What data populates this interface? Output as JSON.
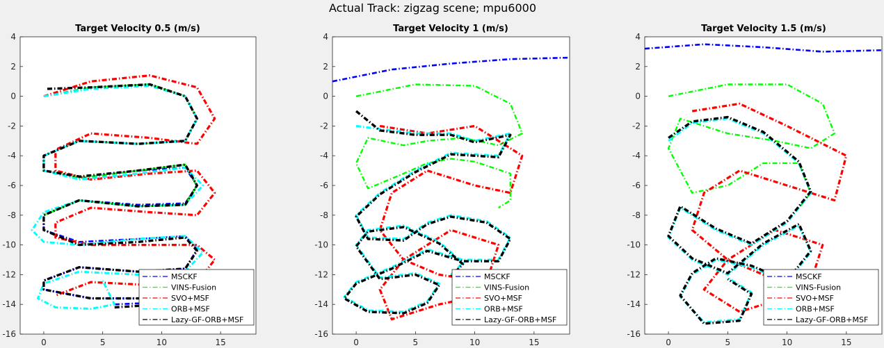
{
  "suptitle": "Actual Track: zigzag scene; mpu6000",
  "colors": {
    "figure_bg": "#f0f0f0",
    "axes_bg": "#ffffff",
    "MSCKF": "#0000ff",
    "VINS-Fusion": "#00ff00",
    "SVO+MSF": "#ff0000",
    "ORB+MSF": "#00ffff",
    "Lazy-GF-ORB+MSF": "#000000",
    "ground_truth_1": "#ff9900",
    "ground_truth_2": "#ffff00",
    "ground_truth_3": "#aa33ee"
  },
  "chart_data": [
    {
      "type": "line",
      "title": "Target Velocity 0.5 (m/s)",
      "xlim": [
        -2,
        18
      ],
      "ylim": [
        -16,
        4
      ],
      "xticks": [
        "0",
        "5",
        "10",
        "15"
      ],
      "yticks": [
        "4",
        "2",
        "0",
        "-2",
        "-4",
        "-6",
        "-8",
        "-10",
        "-12",
        "-14",
        "-16"
      ],
      "legend_loc": "bottom-right",
      "legend": [
        "MSCKF",
        "VINS-Fusion",
        "SVO+MSF",
        "ORB+MSF",
        "Lazy-GF-ORB+MSF"
      ],
      "series": [
        {
          "name": "MSCKF",
          "x": [
            0,
            4,
            9,
            12,
            13,
            12,
            8,
            3,
            0,
            0,
            3,
            8,
            12,
            13,
            12,
            8,
            3,
            0,
            0,
            3,
            8,
            12,
            13,
            12,
            8,
            3,
            0,
            0,
            4,
            9,
            12,
            13,
            12,
            6
          ],
          "y": [
            0,
            0.6,
            0.8,
            0,
            -1.5,
            -3,
            -3.2,
            -3.0,
            -4,
            -5,
            -5.5,
            -5,
            -4.8,
            -6,
            -7.2,
            -7.3,
            -7,
            -8,
            -9,
            -9.8,
            -9.6,
            -9.4,
            -10.3,
            -11.6,
            -11.8,
            -11.5,
            -12.4,
            -13,
            -13.6,
            -13.6,
            -13.2,
            -13.6,
            -13.8,
            -14
          ]
        },
        {
          "name": "VINS-Fusion",
          "x": [
            0,
            4,
            9,
            12,
            13,
            12,
            8,
            3,
            0,
            0,
            3,
            8,
            12,
            13,
            12,
            8,
            3,
            0
          ],
          "y": [
            0,
            0.6,
            0.8,
            0,
            -1.5,
            -3,
            -3.2,
            -3.0,
            -4,
            -5,
            -5.5,
            -5,
            -4.6,
            -6,
            -7.3,
            -7.4,
            -7,
            -8
          ]
        },
        {
          "name": "SVO+MSF",
          "x": [
            0,
            4,
            9,
            13,
            14.5,
            13,
            9,
            4,
            1,
            1,
            4,
            9,
            13,
            14.5,
            13,
            9,
            4,
            1,
            1,
            4,
            9,
            13,
            14.5,
            13,
            9,
            4,
            1
          ],
          "y": [
            0,
            1.0,
            1.4,
            0.6,
            -1.5,
            -3.2,
            -2.8,
            -2.5,
            -3.6,
            -5.0,
            -5.6,
            -5.2,
            -5,
            -6.5,
            -8,
            -7.8,
            -7.5,
            -8.5,
            -9.5,
            -10,
            -10,
            -10,
            -11,
            -12.5,
            -12.7,
            -12.5,
            -13.4
          ]
        },
        {
          "name": "ORB+MSF",
          "x": [
            0,
            4,
            9,
            12,
            13,
            12,
            8,
            3,
            0,
            0,
            3,
            8,
            12,
            13.5,
            12,
            8,
            3,
            0,
            -1,
            0,
            3,
            8,
            12,
            13.5,
            12,
            8,
            3,
            0,
            -0.5,
            1,
            4,
            6,
            5
          ],
          "y": [
            0,
            0.5,
            0.7,
            0,
            -1.5,
            -3,
            -3.2,
            -3.0,
            -4,
            -5,
            -5.6,
            -5.2,
            -4.8,
            -6,
            -7.3,
            -7.4,
            -7,
            -7.8,
            -9,
            -9.8,
            -10,
            -9.6,
            -9.4,
            -10.5,
            -11.8,
            -12,
            -11.8,
            -12.6,
            -13.6,
            -14.2,
            -14.3,
            -14.0,
            -12.4
          ]
        },
        {
          "name": "Lazy-GF-ORB+MSF",
          "x": [
            0.3,
            4,
            9,
            12,
            13,
            12,
            8,
            3,
            0,
            0,
            3,
            8,
            12,
            13,
            12,
            8,
            3,
            0,
            0,
            3,
            8,
            12,
            13,
            12,
            8,
            3,
            0,
            0,
            4,
            9,
            12,
            13,
            12,
            6
          ],
          "y": [
            0.5,
            0.6,
            0.8,
            0,
            -1.5,
            -3,
            -3.2,
            -3.0,
            -4,
            -5,
            -5.4,
            -5,
            -4.6,
            -6,
            -7.3,
            -7.4,
            -7,
            -8,
            -9,
            -10,
            -9.8,
            -9.5,
            -10.4,
            -11.6,
            -11.8,
            -11.5,
            -12.4,
            -13,
            -13.6,
            -13.6,
            -13.2,
            -13.6,
            -13.9,
            -14.2
          ]
        }
      ]
    },
    {
      "type": "line",
      "title": "Target Velocity 1 (m/s)",
      "xlim": [
        -2,
        18
      ],
      "ylim": [
        -16,
        4
      ],
      "xticks": [
        "0",
        "5",
        "10",
        "15"
      ],
      "yticks": [
        "4",
        "2",
        "0",
        "-2",
        "-4",
        "-6",
        "-8",
        "-10",
        "-12",
        "-14",
        "-16"
      ],
      "legend_loc": "bottom-right",
      "legend": [
        "MSCKF",
        "VINS-Fusion",
        "SVO+MSF",
        "ORB+MSF",
        "Lazy-GF-ORB+MSF"
      ],
      "series": [
        {
          "name": "MSCKF",
          "x": [
            -2,
            3,
            8,
            13,
            18
          ],
          "y": [
            1,
            1.8,
            2.2,
            2.5,
            2.6
          ]
        },
        {
          "name": "VINS-Fusion",
          "x": [
            0,
            5,
            10,
            13,
            14,
            12,
            9,
            6,
            4,
            1,
            0,
            1,
            4,
            6,
            8,
            10,
            13,
            13,
            12
          ],
          "y": [
            0,
            0.8,
            0.7,
            -0.5,
            -2.5,
            -3.3,
            -2.8,
            -3.0,
            -3.3,
            -2.8,
            -4.5,
            -6.2,
            -5.2,
            -4.5,
            -4.2,
            -4.4,
            -5.2,
            -7.0,
            -7.5
          ]
        },
        {
          "name": "SVO+MSF",
          "x": [
            2,
            6,
            10,
            14,
            13,
            10,
            6,
            3,
            2,
            4,
            8,
            12,
            11,
            7,
            4,
            2,
            3,
            7,
            10,
            12
          ],
          "y": [
            -2,
            -2.5,
            -2.0,
            -4.0,
            -6.5,
            -6.0,
            -5.0,
            -6.5,
            -9.0,
            -11.0,
            -9.0,
            -10.0,
            -12.5,
            -12.0,
            -11.0,
            -13.0,
            -15.0,
            -14.0,
            -13.5,
            -14.5
          ]
        },
        {
          "name": "ORB+MSF",
          "x": [
            0,
            2,
            5,
            8,
            10,
            13,
            12,
            8,
            5,
            2,
            0,
            1,
            4,
            6,
            8,
            11,
            13,
            12,
            9,
            6,
            3,
            0,
            -1,
            1,
            4,
            6,
            7,
            5,
            2,
            0,
            1,
            4,
            7,
            9,
            8
          ],
          "y": [
            -2,
            -2.2,
            -2.5,
            -2.5,
            -3.0,
            -2.5,
            -4.0,
            -3.8,
            -5.0,
            -6.5,
            -8.0,
            -9.5,
            -9.6,
            -8.5,
            -8.0,
            -8.4,
            -9.5,
            -11,
            -11,
            -10.3,
            -11.5,
            -12.5,
            -13.5,
            -14.4,
            -14.5,
            -13.8,
            -12.6,
            -11.9,
            -12.2,
            -10.0,
            -9.0,
            -8.7,
            -9.8,
            -11.2,
            -12.0
          ]
        },
        {
          "name": "Lazy-GF-ORB+MSF",
          "x": [
            0,
            2,
            5,
            8,
            10,
            13,
            12,
            8,
            5,
            2,
            0,
            1,
            4,
            6,
            8,
            11,
            13,
            12,
            9,
            6,
            3,
            0,
            -1,
            1,
            4,
            6,
            7,
            5,
            2,
            0,
            1,
            4,
            7,
            9,
            8
          ],
          "y": [
            -1.0,
            -2.3,
            -2.6,
            -2.6,
            -3.1,
            -2.6,
            -4.1,
            -3.9,
            -5.1,
            -6.6,
            -8.1,
            -9.6,
            -9.7,
            -8.6,
            -8.1,
            -8.5,
            -9.6,
            -11.1,
            -11.1,
            -10.4,
            -11.6,
            -12.6,
            -13.6,
            -14.5,
            -14.6,
            -13.9,
            -12.7,
            -12.0,
            -12.3,
            -10.1,
            -9.1,
            -8.8,
            -9.9,
            -11.3,
            -12.1
          ]
        }
      ]
    },
    {
      "type": "line",
      "title": "Target Velocity 1.5 (m/s)",
      "xlim": [
        -2,
        18
      ],
      "ylim": [
        -16,
        4
      ],
      "xticks": [
        "0",
        "5",
        "10",
        "15"
      ],
      "yticks": [
        "4",
        "2",
        "0",
        "-2",
        "-4",
        "-6",
        "-8",
        "-10",
        "-12",
        "-14",
        "-16"
      ],
      "legend_loc": "bottom-right",
      "legend": [
        "MSCKF",
        "VINS-Fusion",
        "SVO+MSF",
        "ORB+MSF",
        "Lazy-GF-ORB+MSF"
      ],
      "series": [
        {
          "name": "MSCKF",
          "x": [
            -2,
            3,
            8,
            13,
            18
          ],
          "y": [
            3.2,
            3.5,
            3.3,
            3.0,
            3.1
          ]
        },
        {
          "name": "VINS-Fusion",
          "x": [
            0,
            5,
            10,
            13,
            14,
            12,
            9,
            5,
            1,
            0,
            2,
            5,
            8,
            11,
            12,
            11
          ],
          "y": [
            0,
            0.8,
            0.8,
            -0.5,
            -2.5,
            -3.5,
            -3.0,
            -2.5,
            -1.5,
            -3.5,
            -6.5,
            -6.0,
            -4.5,
            -4.5,
            -6.5,
            -7.5
          ]
        },
        {
          "name": "SVO+MSF",
          "x": [
            2,
            6,
            10,
            15,
            14,
            10,
            6,
            3,
            2,
            5,
            9,
            13,
            12,
            8,
            5,
            3,
            6,
            10,
            13
          ],
          "y": [
            -1,
            -0.5,
            -2.0,
            -4.0,
            -7.0,
            -6.0,
            -5.0,
            -6.5,
            -9.0,
            -11.0,
            -9.0,
            -10.0,
            -12.5,
            -12.0,
            -11.0,
            -13.0,
            -14.5,
            -13.5,
            -14.0
          ]
        },
        {
          "name": "ORB+MSF",
          "x": [
            0,
            2,
            5,
            8,
            11,
            12,
            10,
            7,
            4,
            1,
            0,
            2,
            5,
            8,
            11,
            12,
            10,
            7,
            4,
            2,
            1,
            3,
            6,
            7,
            5
          ],
          "y": [
            -3.0,
            -1.8,
            -1.5,
            -2.5,
            -4.5,
            -6.5,
            -8.5,
            -10.0,
            -9.0,
            -7.5,
            -9.5,
            -11.0,
            -12.0,
            -10.0,
            -8.7,
            -10.5,
            -12.5,
            -11.5,
            -11.0,
            -12.0,
            -13.5,
            -15.2,
            -15.0,
            -13.2,
            -12.2
          ]
        },
        {
          "name": "Lazy-GF-ORB+MSF",
          "x": [
            0,
            2,
            5,
            8,
            11,
            12,
            10,
            7,
            4,
            1,
            0,
            2,
            5,
            8,
            11,
            12,
            10,
            7,
            4,
            2,
            1,
            3,
            6,
            7,
            5
          ],
          "y": [
            -2.8,
            -1.7,
            -1.4,
            -2.4,
            -4.4,
            -6.4,
            -8.4,
            -9.9,
            -8.9,
            -7.4,
            -9.4,
            -10.9,
            -11.9,
            -9.9,
            -8.6,
            -10.4,
            -12.4,
            -11.4,
            -10.9,
            -11.9,
            -13.4,
            -15.3,
            -15.1,
            -13.3,
            -12.3
          ]
        }
      ]
    }
  ]
}
